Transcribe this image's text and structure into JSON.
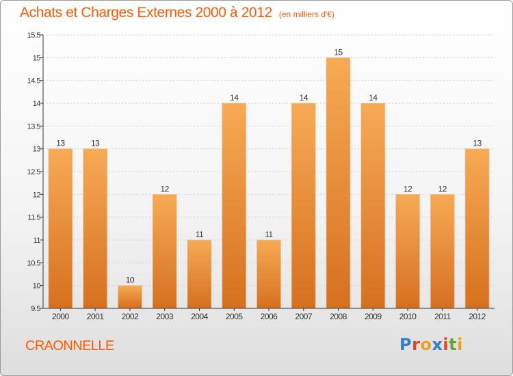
{
  "header": {
    "title": "Achats et Charges Externes 2000 à 2012",
    "unit": "(en milliers d'€)"
  },
  "footer": {
    "commune": "CRAONNELLE",
    "logo_text": "Proxiti",
    "logo_colors": [
      "#2f7fd1",
      "#e8421f",
      "#f0a21a",
      "#2f7fd1",
      "#e8421f",
      "#58a832",
      "#f0a21a"
    ]
  },
  "colors": {
    "bar_top": "#f7aa55",
    "bar_bottom": "#d6701f",
    "axis": "#333333",
    "grid": "#cfcfcf",
    "accent": "#ff5a00"
  },
  "chart_data": {
    "type": "bar",
    "title": "Achats et Charges Externes 2000 à 2012",
    "categories": [
      "2000",
      "2001",
      "2002",
      "2003",
      "2004",
      "2005",
      "2006",
      "2007",
      "2008",
      "2009",
      "2010",
      "2011",
      "2012"
    ],
    "values": [
      13,
      13,
      10,
      12,
      11,
      14,
      11,
      14,
      15,
      14,
      12,
      12,
      13
    ],
    "data_labels": [
      "13",
      "13",
      "10",
      "12",
      "11",
      "14",
      "11",
      "14",
      "15",
      "14",
      "12",
      "12",
      "13"
    ],
    "yticks": [
      "9.5",
      "10",
      "10.5",
      "11",
      "11.5",
      "12",
      "12.5",
      "13",
      "13.5",
      "14",
      "14.5",
      "15",
      "15.5"
    ],
    "ylim": [
      9.5,
      15.5
    ],
    "grid": "horizontal dashed"
  }
}
